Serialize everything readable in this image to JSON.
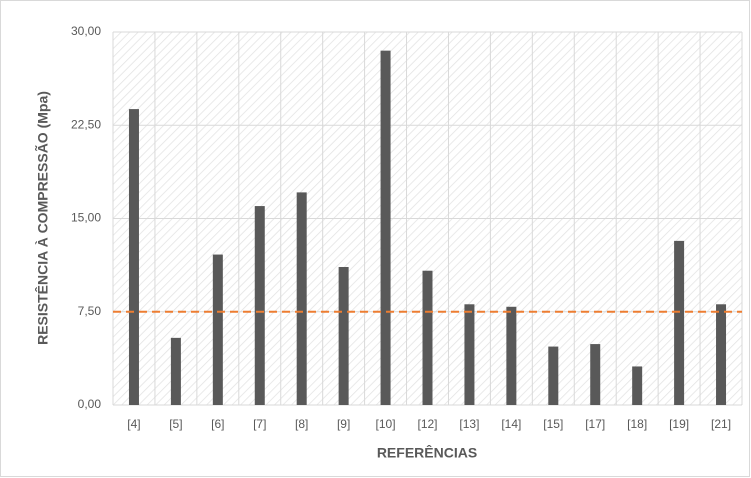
{
  "chart_data": {
    "type": "bar",
    "x_label": "REFERÊNCIAS",
    "y_label": "RESISTÊNCIA À COMPRESSÃO (Mpa)",
    "categories": [
      "[4]",
      "[5]",
      "[6]",
      "[7]",
      "[8]",
      "[9]",
      "[10]",
      "[12]",
      "[13]",
      "[14]",
      "[15]",
      "[17]",
      "[18]",
      "[19]",
      "[21]"
    ],
    "values": [
      23.8,
      5.4,
      12.1,
      16.0,
      17.1,
      11.1,
      28.5,
      10.8,
      8.1,
      7.9,
      4.7,
      4.9,
      3.1,
      13.2,
      8.1
    ],
    "color": "#595959",
    "ylim": [
      0,
      30
    ],
    "yticks": [
      {
        "value": 0,
        "label": "0,00"
      },
      {
        "value": 7.5,
        "label": "7,50"
      },
      {
        "value": 15,
        "label": "15,00"
      },
      {
        "value": 22.5,
        "label": "22,50"
      },
      {
        "value": 30,
        "label": "30,00"
      }
    ],
    "reference_line": {
      "value": 7.5,
      "color": "#ed7d31"
    },
    "grid": true
  }
}
